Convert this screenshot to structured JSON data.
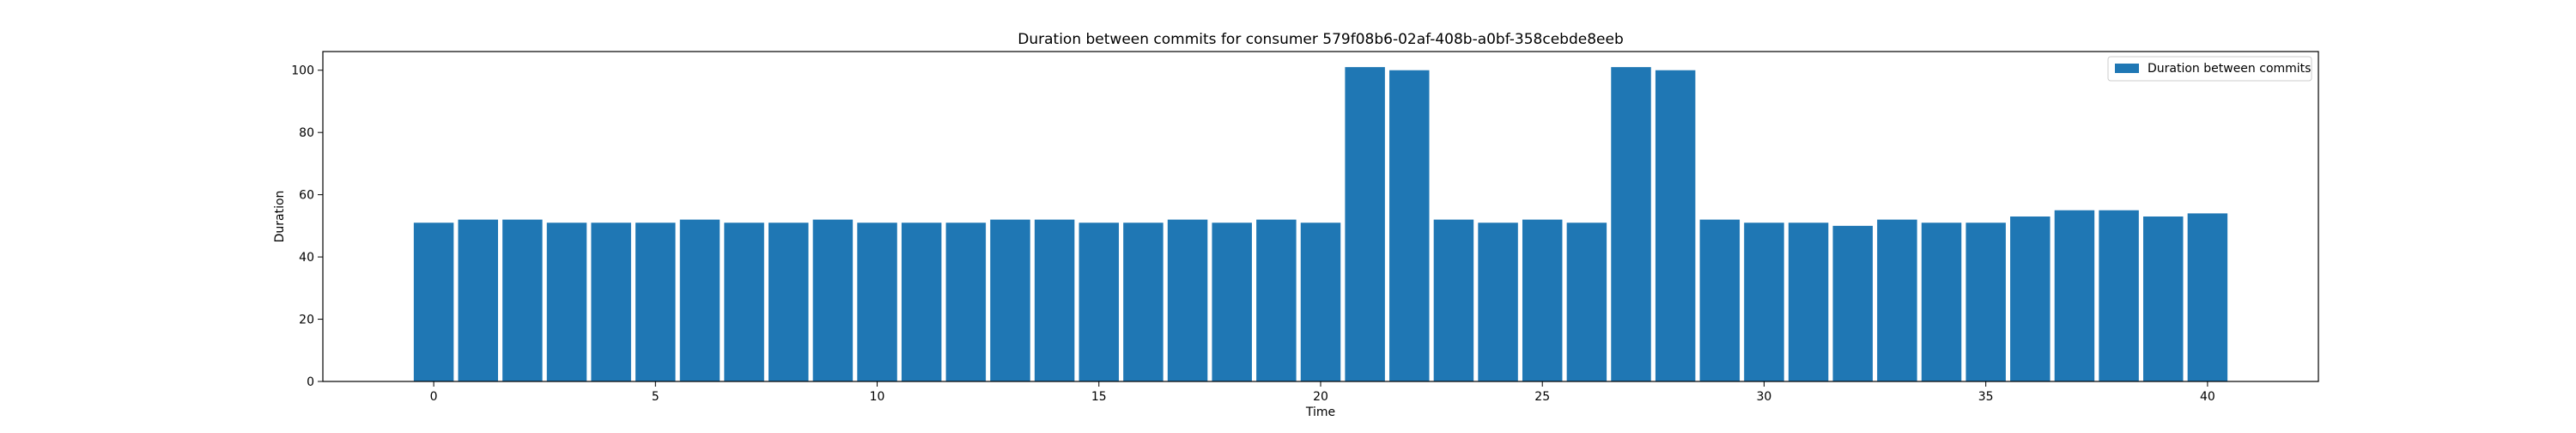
{
  "chart_data": {
    "type": "bar",
    "title": "Duration between commits for consumer 579f08b6-02af-408b-a0bf-358cebde8eeb",
    "xlabel": "Time",
    "ylabel": "Duration",
    "x": [
      0,
      1,
      2,
      3,
      4,
      5,
      6,
      7,
      8,
      9,
      10,
      11,
      12,
      13,
      14,
      15,
      16,
      17,
      18,
      19,
      20,
      21,
      22,
      23,
      24,
      25,
      26,
      27,
      28,
      29,
      30,
      31,
      32,
      33,
      34,
      35,
      36,
      37,
      38,
      39,
      40
    ],
    "series": [
      {
        "name": "Duration between commits",
        "color": "#1f77b4",
        "values": [
          51,
          52,
          52,
          51,
          51,
          51,
          52,
          51,
          51,
          52,
          51,
          51,
          51,
          52,
          52,
          51,
          51,
          52,
          51,
          52,
          51,
          101,
          100,
          52,
          51,
          52,
          51,
          101,
          100,
          52,
          51,
          51,
          50,
          52,
          51,
          51,
          53,
          55,
          55,
          53,
          54
        ]
      }
    ],
    "xlim": [
      -2.5,
      42.5
    ],
    "ylim": [
      0,
      106
    ],
    "xticks": [
      0,
      5,
      10,
      15,
      20,
      25,
      30,
      35,
      40
    ],
    "yticks": [
      0,
      20,
      40,
      60,
      80,
      100
    ],
    "grid": false,
    "legend_position": "top-right"
  }
}
